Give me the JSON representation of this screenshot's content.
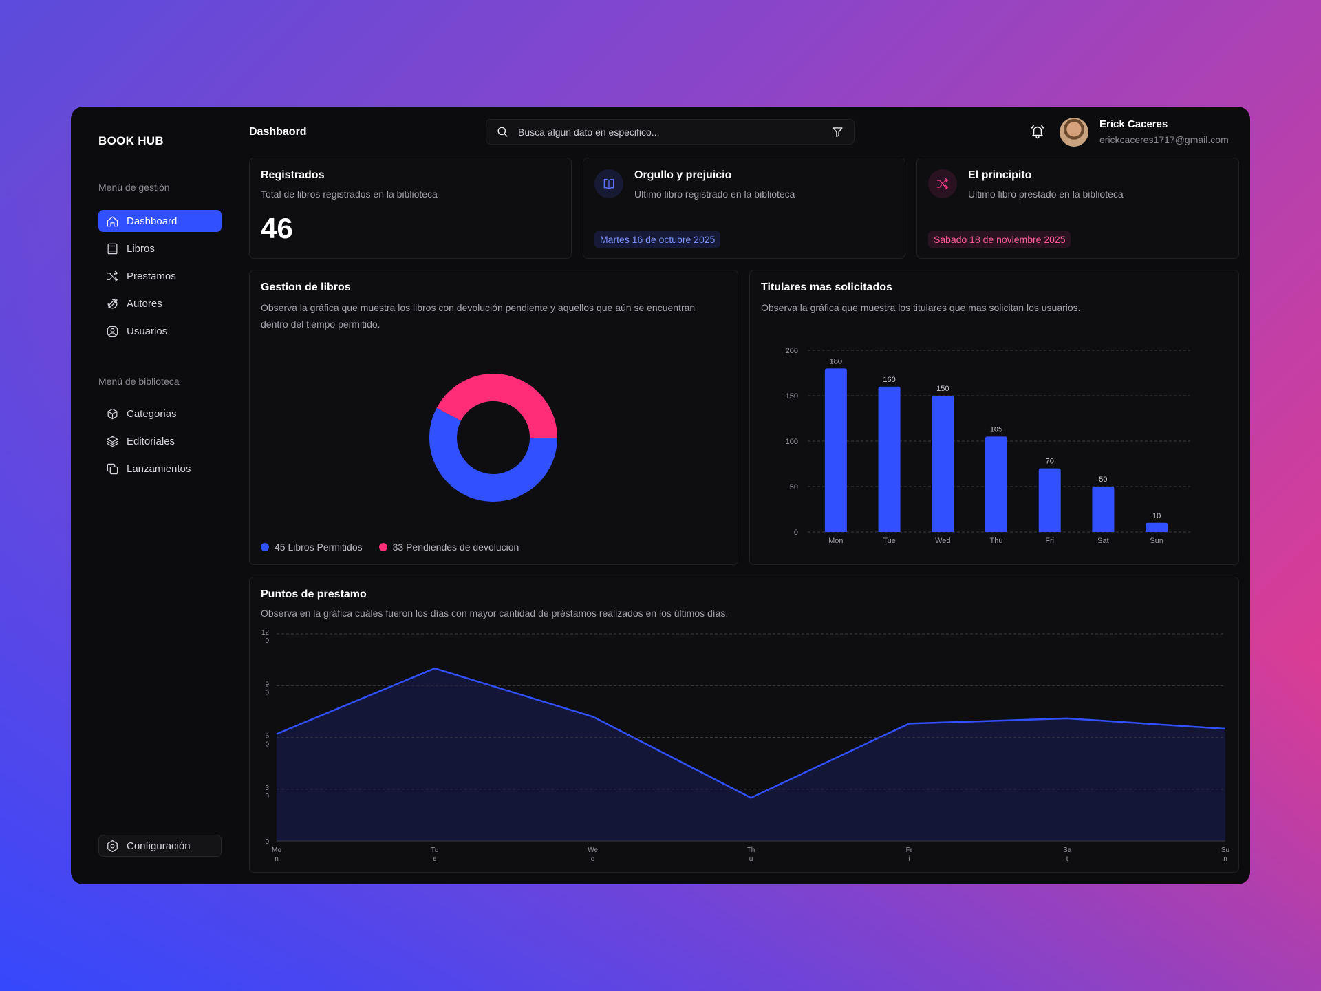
{
  "brand": "BOOK HUB",
  "sidebar": {
    "section1_title": "Menú de gestión",
    "section1_items": [
      {
        "label": "Dashboard",
        "icon": "home-icon",
        "active": true
      },
      {
        "label": "Libros",
        "icon": "book-icon"
      },
      {
        "label": "Prestamos",
        "icon": "shuffle-icon"
      },
      {
        "label": "Autores",
        "icon": "pen-icon"
      },
      {
        "label": "Usuarios",
        "icon": "user-circle-icon"
      }
    ],
    "section2_title": "Menú de biblioteca",
    "section2_items": [
      {
        "label": "Categorias",
        "icon": "box-icon"
      },
      {
        "label": "Editoriales",
        "icon": "layers-icon"
      },
      {
        "label": "Lanzamientos",
        "icon": "copy-icon"
      }
    ],
    "config_label": "Configuración"
  },
  "header": {
    "title": "Dashbaord",
    "search_placeholder": "Busca algun dato en especifico...",
    "user_name": "Erick Caceres",
    "user_email": "erickcaceres1717@gmail.com"
  },
  "stats": {
    "registered": {
      "title": "Registrados",
      "subtitle": "Total de libros registrados en la biblioteca",
      "value": "46"
    },
    "last_registered": {
      "title": "Orgullo y prejuicio",
      "subtitle": "Ultimo libro registrado en la biblioteca",
      "date": "Martes 16 de octubre 2025"
    },
    "last_loaned": {
      "title": "El principito",
      "subtitle": "Ultimo libro prestado en la biblioteca",
      "date": "Sabado 18 de noviembre 2025"
    }
  },
  "donut_card": {
    "title": "Gestion de libros",
    "subtitle": "Observa la gráfica que muestra los libros con devolución pendiente y aquellos que aún se encuentran dentro del tiempo permitido.",
    "legend": [
      "45 Libros Permitidos",
      "33 Pendiendes de devolucion"
    ]
  },
  "bar_card": {
    "title": "Titulares mas solicitados",
    "subtitle": "Observa la gráfica que muestra los titulares que mas solicitan los usuarios."
  },
  "area_card": {
    "title": "Puntos de prestamo",
    "subtitle": "Observa en la gráfica cuáles fueron los días con mayor cantidad de préstamos realizados en los últimos días."
  },
  "colors": {
    "blue": "#3150ff",
    "pink": "#ff2d78",
    "area_fill": "#14173a"
  },
  "chart_data": [
    {
      "type": "pie",
      "categories": [
        "Libros Permitidos",
        "Pendiendes de devolucion"
      ],
      "values": [
        45,
        33
      ],
      "colors": [
        "#3150ff",
        "#ff2d78"
      ]
    },
    {
      "type": "bar",
      "categories": [
        "Mon",
        "Tue",
        "Wed",
        "Thu",
        "Fri",
        "Sat",
        "Sun"
      ],
      "values": [
        180,
        160,
        150,
        105,
        70,
        50,
        10
      ],
      "ylim": [
        0,
        200
      ],
      "yticks": [
        0,
        50,
        100,
        150,
        200
      ],
      "grid": true
    },
    {
      "type": "area",
      "categories": [
        "Mon",
        "Tue",
        "Wed",
        "Thu",
        "Fri",
        "Sat",
        "Sun"
      ],
      "values": [
        62,
        100,
        72,
        25,
        68,
        71,
        65
      ],
      "ylim": [
        0,
        120
      ],
      "yticks": [
        0,
        30,
        60,
        90,
        120
      ],
      "grid": true
    }
  ]
}
